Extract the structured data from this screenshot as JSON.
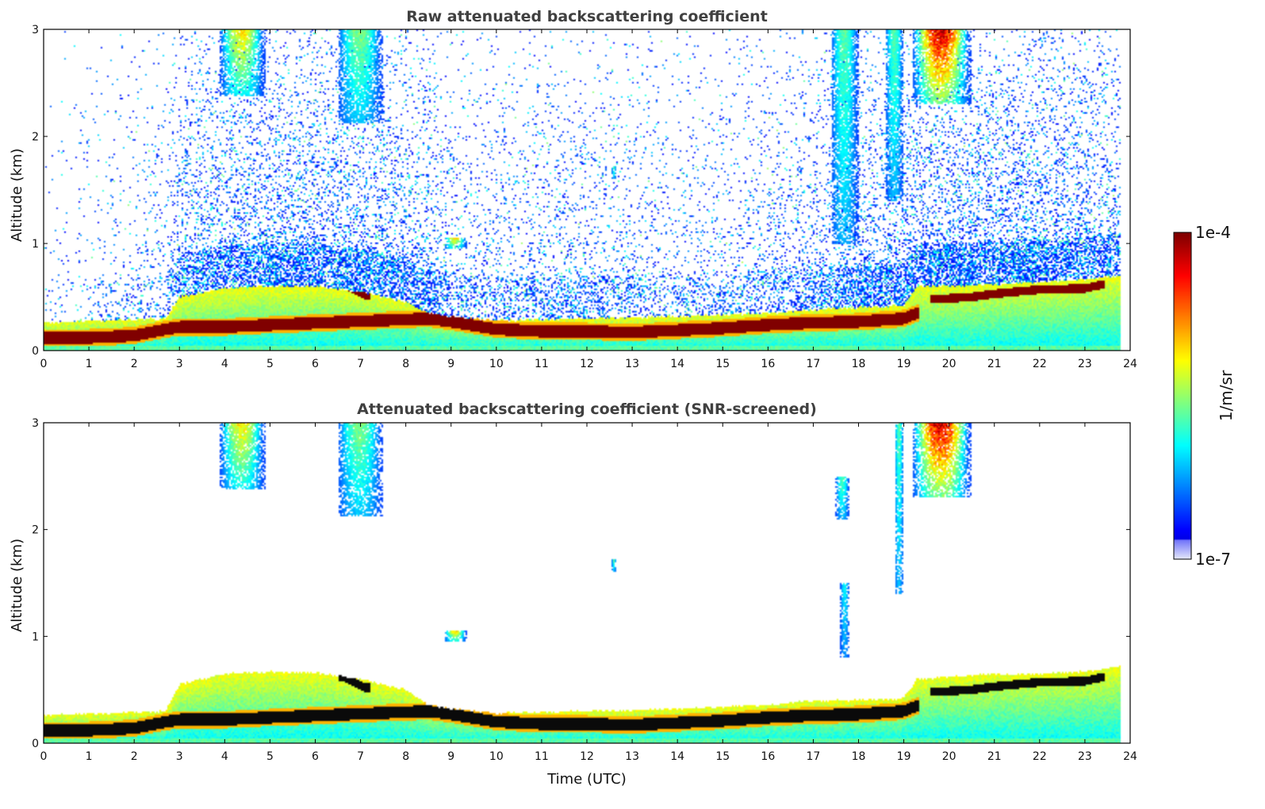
{
  "chart_data": [
    {
      "type": "heatmap",
      "title": "Raw attenuated backscattering coefficient",
      "xlabel": "",
      "ylabel": "Altitude (km)",
      "xlim": [
        0,
        24
      ],
      "ylim": [
        0,
        3
      ],
      "x_ticks": [
        "0",
        "1",
        "2",
        "3",
        "4",
        "5",
        "6",
        "7",
        "8",
        "9",
        "10",
        "11",
        "12",
        "13",
        "14",
        "15",
        "16",
        "17",
        "18",
        "19",
        "20",
        "21",
        "22",
        "23",
        "24"
      ],
      "y_ticks": [
        "0",
        "1",
        "2",
        "3"
      ],
      "screened": false,
      "boundary_layer_top_km": [
        [
          0,
          0.26
        ],
        [
          2.7,
          0.3
        ],
        [
          3,
          0.5
        ],
        [
          4,
          0.58
        ],
        [
          5,
          0.6
        ],
        [
          6,
          0.6
        ],
        [
          7,
          0.55
        ],
        [
          8,
          0.45
        ],
        [
          8.5,
          0.35
        ],
        [
          9,
          0.32
        ],
        [
          10,
          0.28
        ],
        [
          12,
          0.3
        ],
        [
          14,
          0.32
        ],
        [
          16,
          0.35
        ],
        [
          17,
          0.38
        ],
        [
          18,
          0.4
        ],
        [
          19,
          0.42
        ],
        [
          19.3,
          0.6
        ],
        [
          20,
          0.6
        ],
        [
          21,
          0.62
        ],
        [
          22,
          0.64
        ],
        [
          23,
          0.66
        ],
        [
          23.8,
          0.7
        ]
      ],
      "peak_layer_km": [
        [
          0,
          0.12
        ],
        [
          1,
          0.12
        ],
        [
          2,
          0.14
        ],
        [
          2.7,
          0.2
        ],
        [
          3,
          0.22
        ],
        [
          4,
          0.22
        ],
        [
          5,
          0.24
        ],
        [
          8.5,
          0.3
        ],
        [
          9,
          0.27
        ],
        [
          10,
          0.2
        ],
        [
          11,
          0.18
        ],
        [
          12,
          0.18
        ],
        [
          13,
          0.17
        ],
        [
          14,
          0.19
        ],
        [
          15,
          0.21
        ],
        [
          16,
          0.24
        ],
        [
          17,
          0.26
        ],
        [
          18,
          0.27
        ],
        [
          19,
          0.3
        ],
        [
          19.3,
          0.35
        ]
      ],
      "elevated_layer_km": [
        [
          6.6,
          0.62
        ],
        [
          7.1,
          0.52
        ],
        [
          19.7,
          0.48
        ],
        [
          20.5,
          0.5
        ],
        [
          21,
          0.53
        ],
        [
          22,
          0.57
        ],
        [
          23,
          0.58
        ],
        [
          23.4,
          0.62
        ]
      ],
      "clouds": [
        {
          "x": [
            3.9,
            4.9
          ],
          "y": [
            2.38,
            3.0
          ],
          "peak": 1e-05
        },
        {
          "x": [
            6.5,
            7.5
          ],
          "y": [
            2.12,
            3.0
          ],
          "peak": 3e-06
        },
        {
          "x": [
            19.2,
            20.5
          ],
          "y": [
            2.3,
            3.0
          ],
          "peak": 0.0001
        },
        {
          "x": [
            17.4,
            18.0
          ],
          "y": [
            1.0,
            3.0
          ],
          "peak": 2e-06
        },
        {
          "x": [
            18.6,
            19.0
          ],
          "y": [
            1.4,
            3.0
          ],
          "peak": 2e-06
        },
        {
          "x": [
            8.85,
            9.35
          ],
          "y": [
            0.95,
            1.05
          ],
          "peak": 1e-05
        },
        {
          "x": [
            12.55,
            12.65
          ],
          "y": [
            1.6,
            1.72
          ],
          "peak": 2e-06
        }
      ],
      "noise_levels": [
        [
          0,
          0.05
        ],
        [
          2.7,
          0.2
        ],
        [
          3,
          0.5
        ],
        [
          5,
          0.65
        ],
        [
          8.5,
          0.55
        ],
        [
          9,
          0.3
        ],
        [
          12,
          0.35
        ],
        [
          14,
          0.22
        ],
        [
          16,
          0.3
        ],
        [
          18,
          0.55
        ],
        [
          20,
          0.65
        ],
        [
          22,
          0.65
        ],
        [
          23.8,
          0.5
        ]
      ]
    },
    {
      "type": "heatmap",
      "title": "Attenuated backscattering coefficient (SNR-screened)",
      "xlabel": "Time (UTC)",
      "ylabel": "Altitude (km)",
      "xlim": [
        0,
        24
      ],
      "ylim": [
        0,
        3
      ],
      "x_ticks": [
        "0",
        "1",
        "2",
        "3",
        "4",
        "5",
        "6",
        "7",
        "8",
        "9",
        "10",
        "11",
        "12",
        "13",
        "14",
        "15",
        "16",
        "17",
        "18",
        "19",
        "20",
        "21",
        "22",
        "23",
        "24"
      ],
      "y_ticks": [
        "0",
        "1",
        "2",
        "3"
      ],
      "screened": true,
      "boundary_layer_top_km": [
        [
          0,
          0.26
        ],
        [
          2.7,
          0.3
        ],
        [
          3,
          0.55
        ],
        [
          4,
          0.65
        ],
        [
          5,
          0.67
        ],
        [
          6,
          0.66
        ],
        [
          7,
          0.6
        ],
        [
          8,
          0.5
        ],
        [
          8.5,
          0.36
        ],
        [
          9,
          0.32
        ],
        [
          10,
          0.28
        ],
        [
          12,
          0.3
        ],
        [
          14,
          0.32
        ],
        [
          16,
          0.36
        ],
        [
          17,
          0.4
        ],
        [
          18,
          0.4
        ],
        [
          19,
          0.42
        ],
        [
          19.3,
          0.6
        ],
        [
          20,
          0.62
        ],
        [
          21,
          0.65
        ],
        [
          22,
          0.65
        ],
        [
          23,
          0.67
        ],
        [
          23.8,
          0.72
        ]
      ],
      "peak_layer_km": [
        [
          0,
          0.12
        ],
        [
          1,
          0.12
        ],
        [
          2,
          0.14
        ],
        [
          2.7,
          0.2
        ],
        [
          3,
          0.22
        ],
        [
          4,
          0.22
        ],
        [
          5,
          0.24
        ],
        [
          8.5,
          0.3
        ],
        [
          9,
          0.27
        ],
        [
          10,
          0.2
        ],
        [
          11,
          0.18
        ],
        [
          12,
          0.18
        ],
        [
          13,
          0.17
        ],
        [
          14,
          0.19
        ],
        [
          15,
          0.21
        ],
        [
          16,
          0.24
        ],
        [
          17,
          0.26
        ],
        [
          18,
          0.27
        ],
        [
          19,
          0.3
        ],
        [
          19.3,
          0.35
        ]
      ],
      "elevated_layer_km": [
        [
          6.6,
          0.62
        ],
        [
          7.1,
          0.52
        ],
        [
          19.7,
          0.48
        ],
        [
          20.5,
          0.5
        ],
        [
          21,
          0.53
        ],
        [
          22,
          0.57
        ],
        [
          23,
          0.58
        ],
        [
          23.4,
          0.62
        ]
      ],
      "clouds": [
        {
          "x": [
            3.9,
            4.9
          ],
          "y": [
            2.38,
            3.0
          ],
          "peak": 1e-05
        },
        {
          "x": [
            6.5,
            7.5
          ],
          "y": [
            2.12,
            3.0
          ],
          "peak": 3e-06
        },
        {
          "x": [
            19.2,
            20.5
          ],
          "y": [
            2.3,
            3.0
          ],
          "peak": 0.0001
        },
        {
          "x": [
            17.5,
            17.8
          ],
          "y": [
            2.1,
            2.5
          ],
          "peak": 2e-06
        },
        {
          "x": [
            18.8,
            19.0
          ],
          "y": [
            1.4,
            3.0
          ],
          "peak": 2e-06
        },
        {
          "x": [
            17.6,
            17.8
          ],
          "y": [
            0.8,
            1.5
          ],
          "peak": 1e-06
        },
        {
          "x": [
            8.85,
            9.35
          ],
          "y": [
            0.95,
            1.05
          ],
          "peak": 1e-05
        },
        {
          "x": [
            12.55,
            12.65
          ],
          "y": [
            1.6,
            1.72
          ],
          "peak": 2e-06
        }
      ],
      "noise_levels": []
    }
  ],
  "colorbar": {
    "label": "1/m/sr",
    "min_label": "1e-7",
    "max_label": "1e-4",
    "scale": "log",
    "colormap": "jet",
    "range": [
      1e-07,
      0.0001
    ]
  }
}
